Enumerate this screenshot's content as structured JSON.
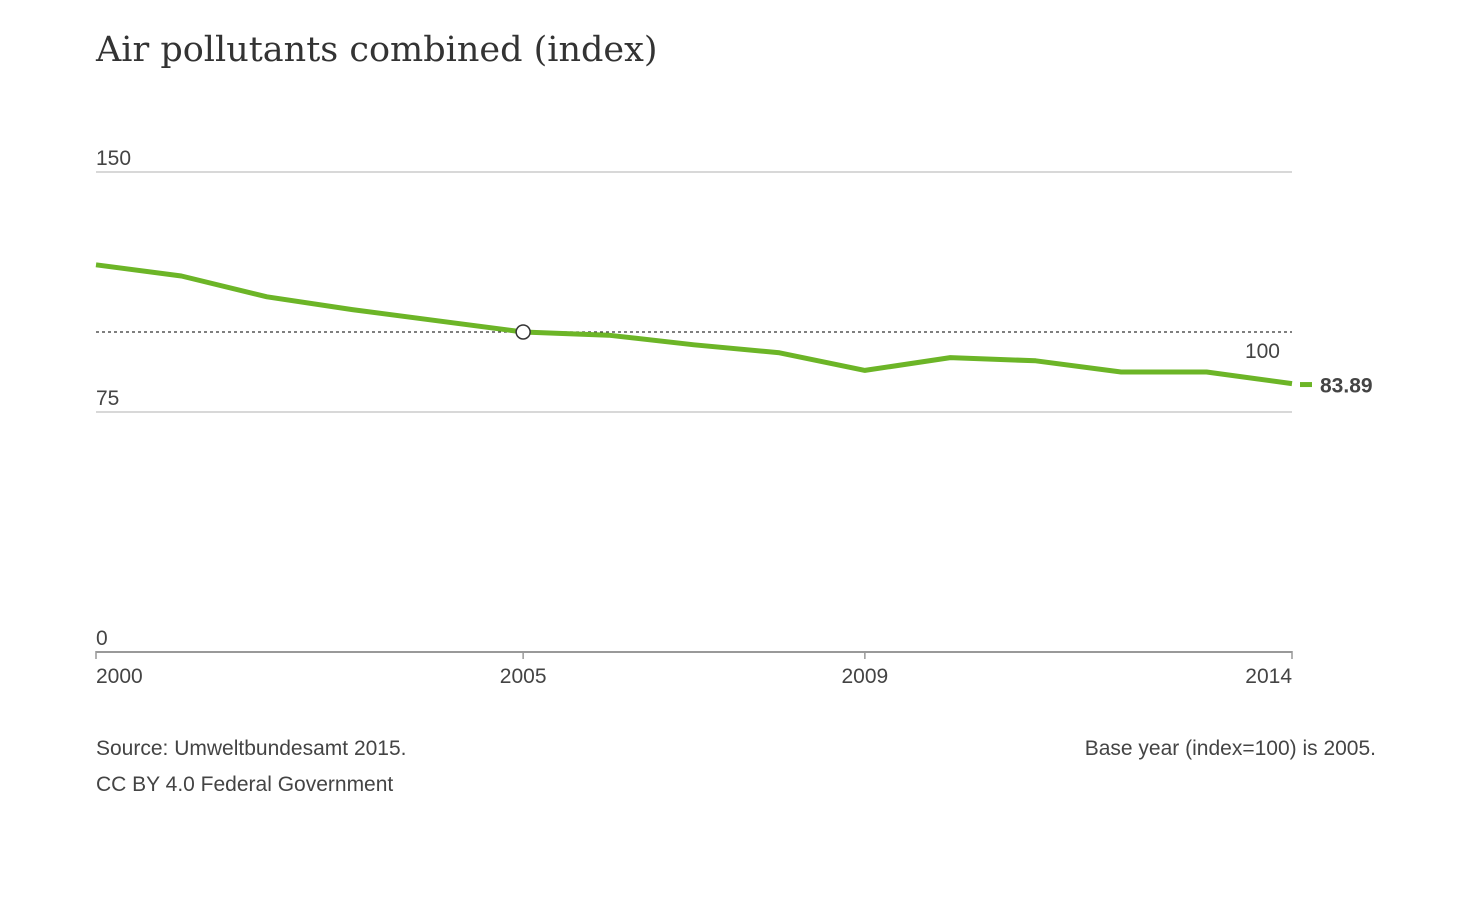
{
  "title": "Air pollutants combined (index)",
  "footer": {
    "source": "Source: Umweltbundesamt 2015.",
    "license": "CC BY 4.0 Federal Government",
    "base_note": "Base year (index=100) is 2005."
  },
  "colors": {
    "line": "#6cb527",
    "grid": "#cccccc",
    "axis": "#999999",
    "text": "#444444",
    "reference": "#333333"
  },
  "chart_data": {
    "type": "line",
    "title": "Air pollutants combined (index)",
    "xlabel": "",
    "ylabel": "",
    "x": [
      2000,
      2001,
      2002,
      2003,
      2004,
      2005,
      2006,
      2007,
      2008,
      2009,
      2010,
      2011,
      2012,
      2013,
      2014
    ],
    "x_ticks": [
      "2000",
      "2005",
      "2009",
      "2014"
    ],
    "x_tick_values": [
      2000,
      2005,
      2009,
      2014
    ],
    "y_ticks": [
      "150",
      "75",
      "0"
    ],
    "y_tick_values": [
      150,
      75,
      0
    ],
    "ylim": [
      0,
      150
    ],
    "grid": "horizontal",
    "series": [
      {
        "values": [
          121,
          117.5,
          111,
          107,
          103.5,
          100,
          99,
          96,
          93.5,
          88,
          92,
          91,
          87.5,
          87.5,
          83.89
        ]
      }
    ],
    "reference_line": {
      "value": 100,
      "label": "100",
      "style": "dotted"
    },
    "highlight_point": {
      "x": 2005,
      "value": 100
    },
    "end_label": "83.89"
  }
}
